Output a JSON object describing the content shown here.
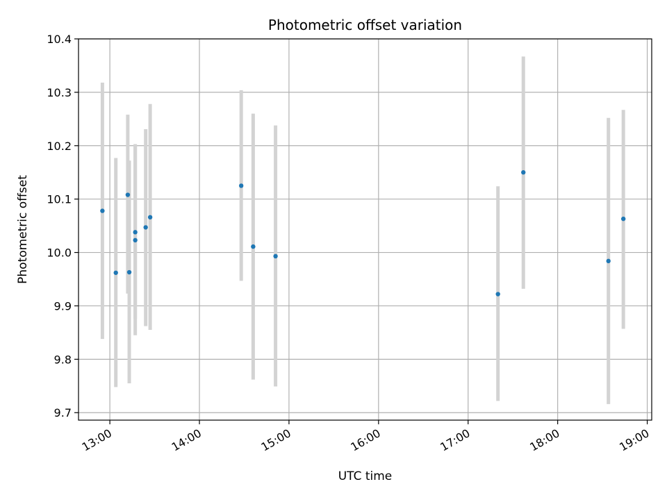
{
  "chart_data": {
    "type": "scatter",
    "title": "Photometric offset variation",
    "xlabel": "UTC time",
    "ylabel": "Photometric offset",
    "xlim": [
      "12:39",
      "19:03"
    ],
    "ylim": [
      9.686,
      10.4
    ],
    "x_ticks": [
      "13:00",
      "14:00",
      "15:00",
      "16:00",
      "17:00",
      "18:00",
      "19:00"
    ],
    "y_ticks": [
      "9.7",
      "9.8",
      "9.9",
      "10.0",
      "10.1",
      "10.2",
      "10.3",
      "10.4"
    ],
    "grid": true,
    "points": [
      {
        "time": "12:55",
        "y": 10.078,
        "err_low": 9.838,
        "err_high": 10.318
      },
      {
        "time": "13:04",
        "y": 9.962,
        "err_low": 9.748,
        "err_high": 10.177
      },
      {
        "time": "13:12",
        "y": 10.108,
        "err_low": 9.923,
        "err_high": 10.258
      },
      {
        "time": "13:13",
        "y": 9.963,
        "err_low": 9.755,
        "err_high": 10.172
      },
      {
        "time": "13:17",
        "y": 10.038,
        "err_low": 9.876,
        "err_high": 10.202
      },
      {
        "time": "13:17",
        "y": 10.023,
        "err_low": 9.845,
        "err_high": 10.203
      },
      {
        "time": "13:24",
        "y": 10.047,
        "err_low": 9.862,
        "err_high": 10.231
      },
      {
        "time": "13:27",
        "y": 10.066,
        "err_low": 9.855,
        "err_high": 10.278
      },
      {
        "time": "14:28",
        "y": 10.125,
        "err_low": 9.947,
        "err_high": 10.304
      },
      {
        "time": "14:36",
        "y": 10.011,
        "err_low": 9.762,
        "err_high": 10.26
      },
      {
        "time": "14:51",
        "y": 9.993,
        "err_low": 9.749,
        "err_high": 10.238
      },
      {
        "time": "17:20",
        "y": 9.922,
        "err_low": 9.722,
        "err_high": 10.124
      },
      {
        "time": "17:37",
        "y": 10.15,
        "err_low": 9.932,
        "err_high": 10.367
      },
      {
        "time": "18:34",
        "y": 9.984,
        "err_low": 9.716,
        "err_high": 10.252
      },
      {
        "time": "18:44",
        "y": 10.063,
        "err_low": 9.857,
        "err_high": 10.267
      }
    ],
    "colors": {
      "point": "#1f77b4",
      "error_bar": "#d3d3d3",
      "grid": "#b0b0b0"
    }
  }
}
